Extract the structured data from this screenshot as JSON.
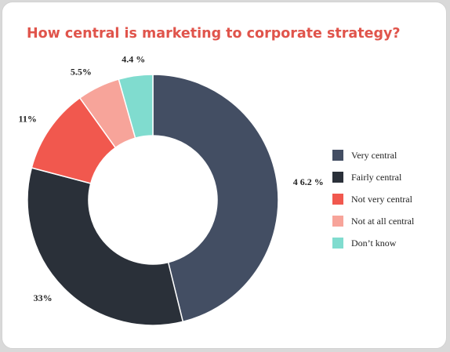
{
  "chart_data": {
    "type": "pie",
    "title": "How central is marketing to corporate strategy?",
    "categories": [
      "Very central",
      "Fairly central",
      "Not very central",
      "Not at all central",
      "Don’t know"
    ],
    "values": [
      46.2,
      33,
      11,
      5.5,
      4.4
    ],
    "data_labels": [
      "4 6.2 %",
      "33%",
      "11%",
      "5.5%",
      "4.4 %"
    ],
    "colors": [
      "#434e63",
      "#2a3039",
      "#f1584e",
      "#f7a49a",
      "#80dccf"
    ],
    "donut": true,
    "legend_position": "right"
  }
}
